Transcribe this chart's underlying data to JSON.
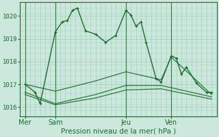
{
  "bg_color": "#cce8dc",
  "plot_bg_color": "#cce8dc",
  "grid_color": "#99ccbb",
  "line_color": "#1a6b2a",
  "title": "Pression niveau de la mer( hPa )",
  "yticks": [
    1016,
    1017,
    1018,
    1019,
    1020
  ],
  "ylim": [
    1015.6,
    1020.6
  ],
  "xtick_labels": [
    "Mer",
    "Sam",
    "Jeu",
    "Ven"
  ],
  "xtick_positions": [
    0.5,
    3.5,
    10.5,
    15.0
  ],
  "xlim": [
    0,
    19.5
  ],
  "series1_x": [
    0.5,
    1.5,
    2.0,
    3.5,
    4.2,
    4.7,
    5.2,
    5.7,
    6.5,
    7.5,
    8.5,
    9.5,
    10.5,
    11.0,
    11.5,
    12.0,
    12.5,
    13.5,
    14.0,
    15.0,
    15.5,
    16.0,
    16.5,
    17.5,
    18.5,
    19.0
  ],
  "series1_y": [
    1017.0,
    1016.65,
    1016.15,
    1019.3,
    1019.75,
    1019.8,
    1020.25,
    1020.35,
    1019.35,
    1019.2,
    1018.85,
    1019.15,
    1020.25,
    1020.05,
    1019.55,
    1019.75,
    1018.85,
    1017.25,
    1017.1,
    1018.25,
    1018.15,
    1017.45,
    1017.75,
    1017.05,
    1016.65,
    1016.65
  ],
  "series2_x": [
    0.5,
    3.5,
    7.5,
    10.5,
    14.0,
    15.0,
    19.0
  ],
  "series2_y": [
    1017.0,
    1016.7,
    1017.15,
    1017.55,
    1017.2,
    1018.2,
    1016.55
  ],
  "series3_x": [
    0.5,
    3.5,
    7.5,
    10.5,
    14.0,
    19.0
  ],
  "series3_y": [
    1016.65,
    1016.15,
    1016.55,
    1016.95,
    1016.95,
    1016.45
  ],
  "series4_x": [
    0.5,
    3.5,
    7.5,
    10.5,
    14.0,
    19.0
  ],
  "series4_y": [
    1016.55,
    1016.1,
    1016.4,
    1016.75,
    1016.8,
    1016.35
  ],
  "vline_positions": [
    0.5,
    3.5,
    10.5,
    15.0
  ],
  "n_vgrid": 19,
  "n_hgrid_minor": 4
}
